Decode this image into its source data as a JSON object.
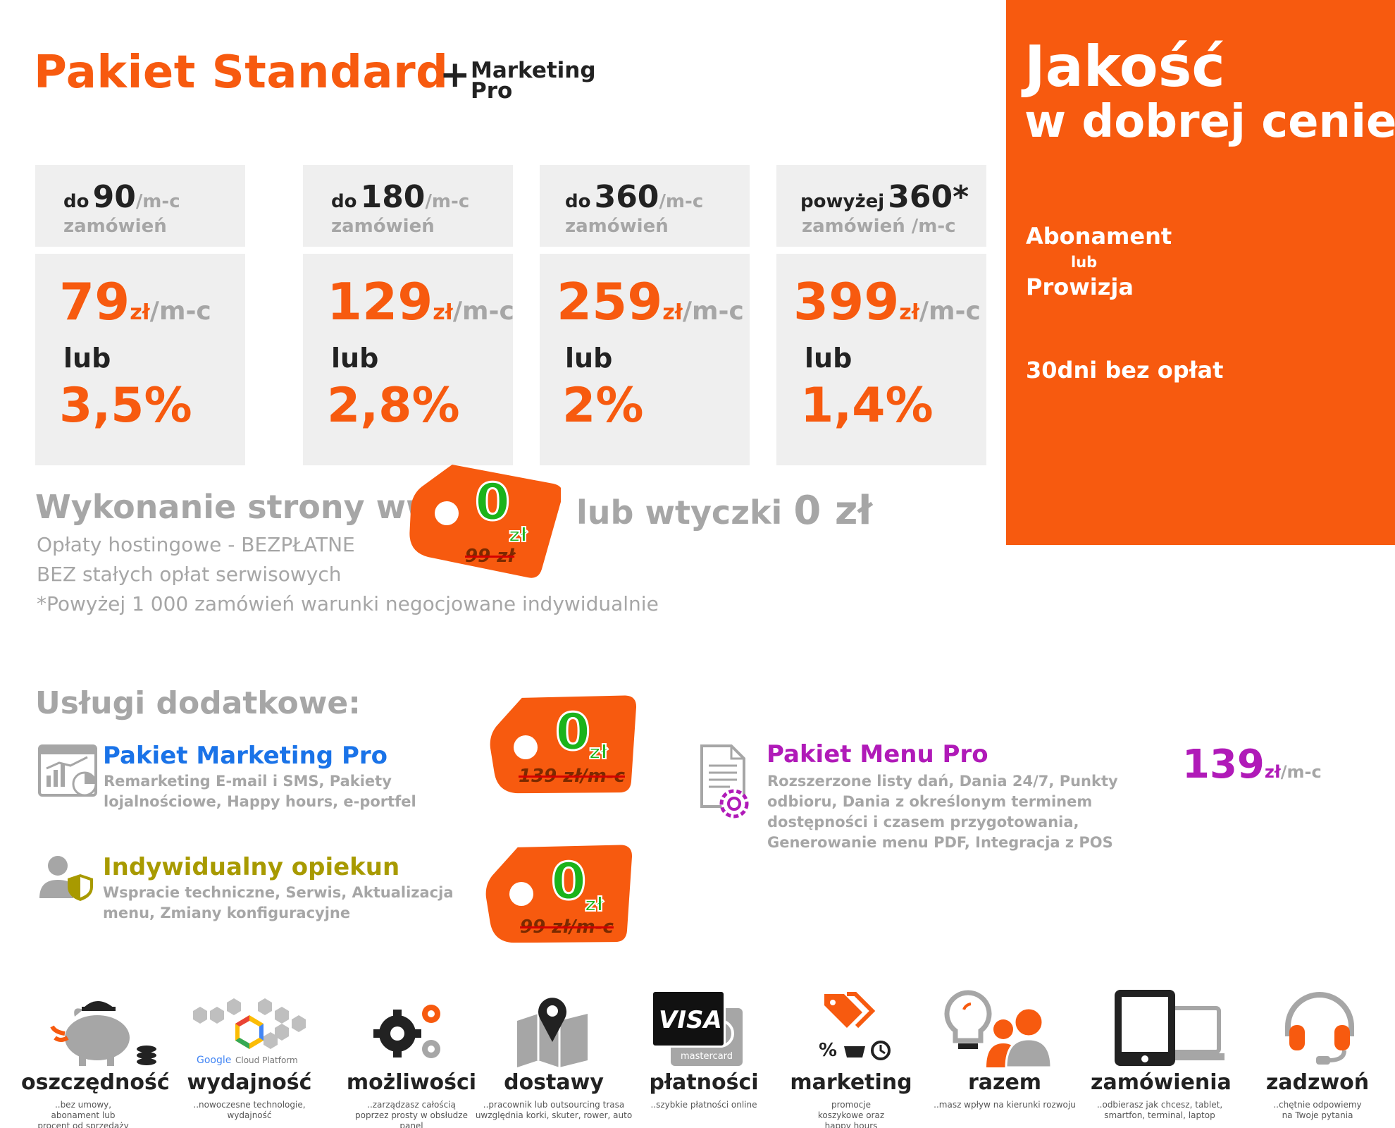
{
  "header": {
    "title": "Pakiet Standard",
    "plus": "+",
    "marketing_line1": "Marketing",
    "marketing_line2": "Pro"
  },
  "panel": {
    "line1": "Jakość",
    "line2": "w dobrej cenie",
    "abonament": "Abonament",
    "lub": "lub",
    "prowizja": "Prowizja",
    "trial": "30dni bez opłat",
    "bg_color": "#f75a0f"
  },
  "tiers": [
    {
      "prefix": "do",
      "count": "90",
      "unit": "/m-c",
      "label": "zamówień",
      "price": "79",
      "currency": "zł",
      "per": "/m-c",
      "or": "lub",
      "percent": "3,5%"
    },
    {
      "prefix": "do",
      "count": "180",
      "unit": "/m-c",
      "label": "zamówień",
      "price": "129",
      "currency": "zł",
      "per": "/m-c",
      "or": "lub",
      "percent": "2,8%"
    },
    {
      "prefix": "do",
      "count": "360",
      "unit": "/m-c",
      "label": "zamówień",
      "price": "259",
      "currency": "zł",
      "per": "/m-c",
      "or": "lub",
      "percent": "2%"
    },
    {
      "prefix": "powyżej",
      "count": "360*",
      "unit": "",
      "label": "zamówień /m-c",
      "price": "399",
      "currency": "zł",
      "per": "/m-c",
      "or": "lub",
      "percent": "1,4%"
    }
  ],
  "website": {
    "text": "Wykonanie strony www",
    "text2": "lub wtyczki",
    "price": "0 zł",
    "tag_zero": "0",
    "tag_currency": "zł",
    "tag_old": "99 zł"
  },
  "notes": [
    "Opłaty hostingowe - BEZPŁATNE",
    "BEZ stałych opłat serwisowych",
    "*Powyżej 1 000 zamówień warunki negocjowane indywidualnie"
  ],
  "services": {
    "title": "Usługi dodatkowe:",
    "marketing": {
      "name": "Pakiet Marketing Pro",
      "desc": "Remarketing E-mail i SMS, Pakiety lojalnościowe, Happy hours, e-portfel",
      "tag_zero": "0",
      "tag_currency": "zł",
      "tag_old": "139 zł/m-c",
      "color": "#1a73e8"
    },
    "opiekun": {
      "name": "Indywidualny opiekun",
      "desc": "Wspracie techniczne, Serwis, Aktualizacja menu, Zmiany konfiguracyjne",
      "tag_zero": "0",
      "tag_currency": "zł",
      "tag_old": "99 zł/m-c",
      "color": "#a89a00"
    },
    "menu": {
      "name": "Pakiet Menu Pro",
      "desc": "Rozszerzone listy dań, Dania 24/7, Punkty odbioru, Dania z określonym terminem dostępności i czasem przygotowania, Generowanie menu PDF, Integracja z POS",
      "price": "139",
      "currency": "zł",
      "per": "/m-c",
      "color": "#b01ab8"
    }
  },
  "features": [
    {
      "label": "oszczędność",
      "sub": "..bez umowy, abonament lub procent od sprzedaży",
      "icon": "piggy-bank-icon"
    },
    {
      "label": "wydajność",
      "sub": "..nowoczesne technologie, wydajność",
      "icon": "cloud-platform-icon",
      "logo_text": "Google Cloud Platform"
    },
    {
      "label": "możliwości",
      "sub": "..zarządzasz całością poprzez prosty w obsłudze panel",
      "icon": "gears-icon"
    },
    {
      "label": "dostawy",
      "sub": "..pracownik lub outsourcing trasa uwzględnia korki, skuter, rower, auto",
      "icon": "map-pin-icon"
    },
    {
      "label": "płatności",
      "sub": "..szybkie płatności online",
      "icon": "payment-cards-icon",
      "visa": "VISA",
      "mc": "mastercard"
    },
    {
      "label": "marketing",
      "sub": "promocje koszykowe oraz happy hours",
      "icon": "tags-icon"
    },
    {
      "label": "razem",
      "sub": "..masz wpływ na kierunki rozwoju",
      "icon": "idea-people-icon"
    },
    {
      "label": "zamówienia",
      "sub": "..odbierasz jak chcesz, tablet, smartfon, terminal, laptop",
      "icon": "devices-icon"
    },
    {
      "label": "zadzwoń",
      "sub": "..chętnie odpowiemy na Twoje pytania",
      "icon": "headset-icon"
    }
  ]
}
